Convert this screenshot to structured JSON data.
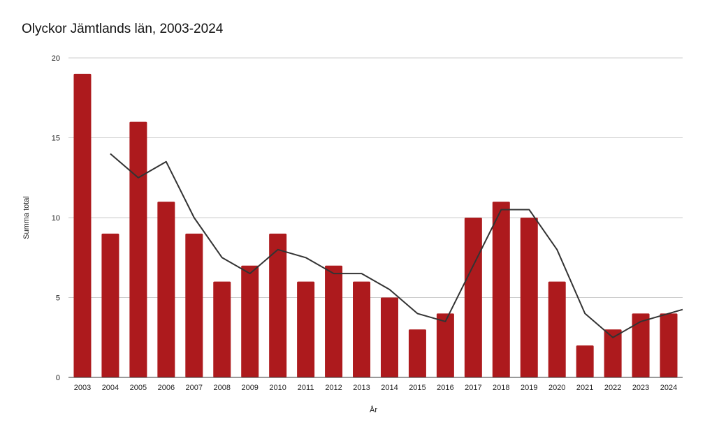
{
  "chart_data": {
    "type": "bar",
    "title": "Olyckor Jämtlands län, 2003-2024",
    "xlabel": "År",
    "ylabel": "Summa total",
    "categories": [
      "2003",
      "2004",
      "2005",
      "2006",
      "2007",
      "2008",
      "2009",
      "2010",
      "2011",
      "2012",
      "2013",
      "2014",
      "2015",
      "2016",
      "2017",
      "2018",
      "2019",
      "2020",
      "2021",
      "2022",
      "2023",
      "2024"
    ],
    "series": [
      {
        "kind": "bar",
        "color": "#ad1a1d",
        "values": [
          19,
          9,
          16,
          11,
          9,
          6,
          7,
          9,
          6,
          7,
          6,
          5,
          3,
          4,
          10,
          11,
          10,
          6,
          2,
          3,
          4,
          4
        ]
      },
      {
        "kind": "line",
        "color": "#333333",
        "values": [
          null,
          14,
          12.5,
          13.5,
          10,
          7.5,
          6.5,
          8,
          7.5,
          6.5,
          6.5,
          5.5,
          4,
          3.5,
          7,
          10.5,
          10.5,
          8,
          4,
          2.5,
          3.5,
          4
        ]
      }
    ],
    "ylim": [
      0,
      20
    ],
    "yticks": [
      0,
      5,
      10,
      15,
      20
    ],
    "grid": true,
    "legend": "none"
  }
}
